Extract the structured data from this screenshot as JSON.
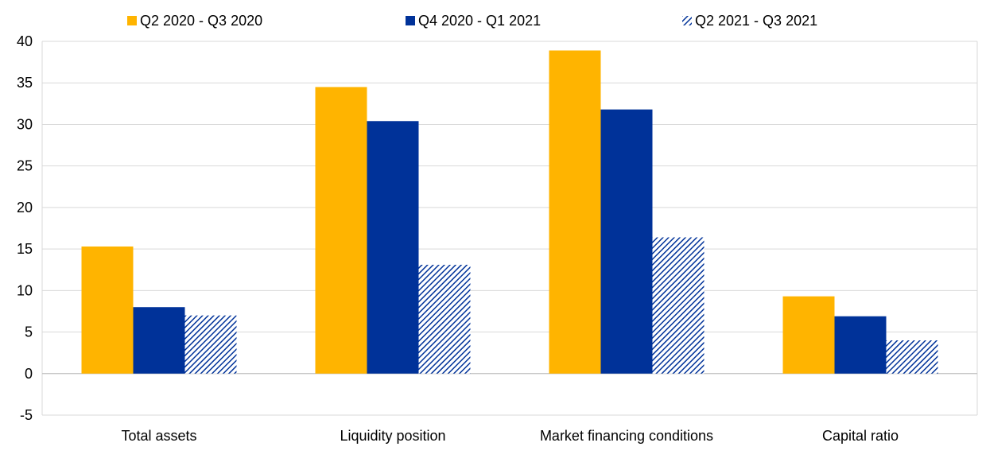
{
  "chart_data": {
    "type": "bar",
    "title": "",
    "xlabel": "",
    "ylabel": "",
    "ylim": [
      -5,
      40
    ],
    "yticks": [
      -5,
      0,
      5,
      10,
      15,
      20,
      25,
      30,
      35,
      40
    ],
    "grid": true,
    "legend_position": "top",
    "categories": [
      "Total assets",
      "Liquidity position",
      "Market financing conditions",
      "Capital ratio"
    ],
    "series": [
      {
        "name": "Q2 2020 - Q3 2020",
        "color": "#ffb400",
        "pattern": "solid",
        "values": [
          15.3,
          34.5,
          38.9,
          9.3
        ]
      },
      {
        "name": "Q4 2020 - Q1 2021",
        "color": "#003299",
        "pattern": "solid",
        "values": [
          8.0,
          30.4,
          31.8,
          6.9
        ]
      },
      {
        "name": "Q2 2021 - Q3 2021",
        "color": "#003299",
        "pattern": "diagonal-hatch",
        "values": [
          7.0,
          13.1,
          16.4,
          4.0
        ]
      }
    ]
  }
}
